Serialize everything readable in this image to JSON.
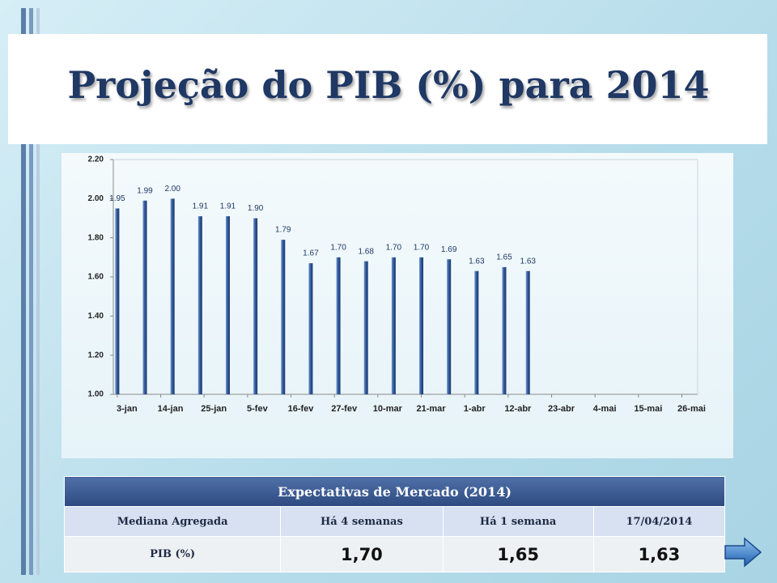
{
  "title": "Projeção do PIB (%) para 2014",
  "chart_data": {
    "type": "bar",
    "x": [
      0,
      7,
      14,
      21,
      28,
      35,
      42,
      49,
      56,
      63,
      70,
      77,
      84,
      91,
      98,
      104
    ],
    "values": [
      1.95,
      1.99,
      2.0,
      1.91,
      1.91,
      1.9,
      1.79,
      1.67,
      1.7,
      1.68,
      1.7,
      1.7,
      1.69,
      1.63,
      1.65,
      1.63
    ],
    "value_labels": [
      "1.95",
      "1.99",
      "2.00",
      "1.91",
      "1.91",
      "1.90",
      "1.79",
      "1.67",
      "1.70",
      "1.68",
      "1.70",
      "1.70",
      "1.69",
      "1.63",
      "1.65",
      "1.63"
    ],
    "color": "#2f5597",
    "xlim": [
      -1,
      147
    ],
    "xticks": [
      {
        "value": 0,
        "label": "3-jan"
      },
      {
        "value": 11,
        "label": "14-jan"
      },
      {
        "value": 22,
        "label": "25-jan"
      },
      {
        "value": 33,
        "label": "5-fev"
      },
      {
        "value": 44,
        "label": "16-fev"
      },
      {
        "value": 55,
        "label": "27-fev"
      },
      {
        "value": 66,
        "label": "10-mar"
      },
      {
        "value": 77,
        "label": "21-mar"
      },
      {
        "value": 88,
        "label": "1-abr"
      },
      {
        "value": 99,
        "label": "12-abr"
      },
      {
        "value": 110,
        "label": "23-abr"
      },
      {
        "value": 121,
        "label": "4-mai"
      },
      {
        "value": 132,
        "label": "15-mai"
      },
      {
        "value": 143,
        "label": "26-mai"
      }
    ],
    "ylim": [
      1.0,
      2.2
    ],
    "yticks": [
      {
        "value": 1.0,
        "label": "1.00"
      },
      {
        "value": 1.2,
        "label": "1.20"
      },
      {
        "value": 1.4,
        "label": "1.40"
      },
      {
        "value": 1.6,
        "label": "1.60"
      },
      {
        "value": 1.8,
        "label": "1.80"
      },
      {
        "value": 2.0,
        "label": "2.00"
      },
      {
        "value": 2.2,
        "label": "2.20"
      }
    ],
    "grid": false
  },
  "table": {
    "title": "Expectativas de Mercado (2014)",
    "header": [
      "Mediana Agregada",
      "Há 4 semanas",
      "Há 1 semana",
      "17/04/2014"
    ],
    "rows": [
      [
        "PIB (%)",
        "1,70",
        "1,65",
        "1,63"
      ]
    ]
  }
}
